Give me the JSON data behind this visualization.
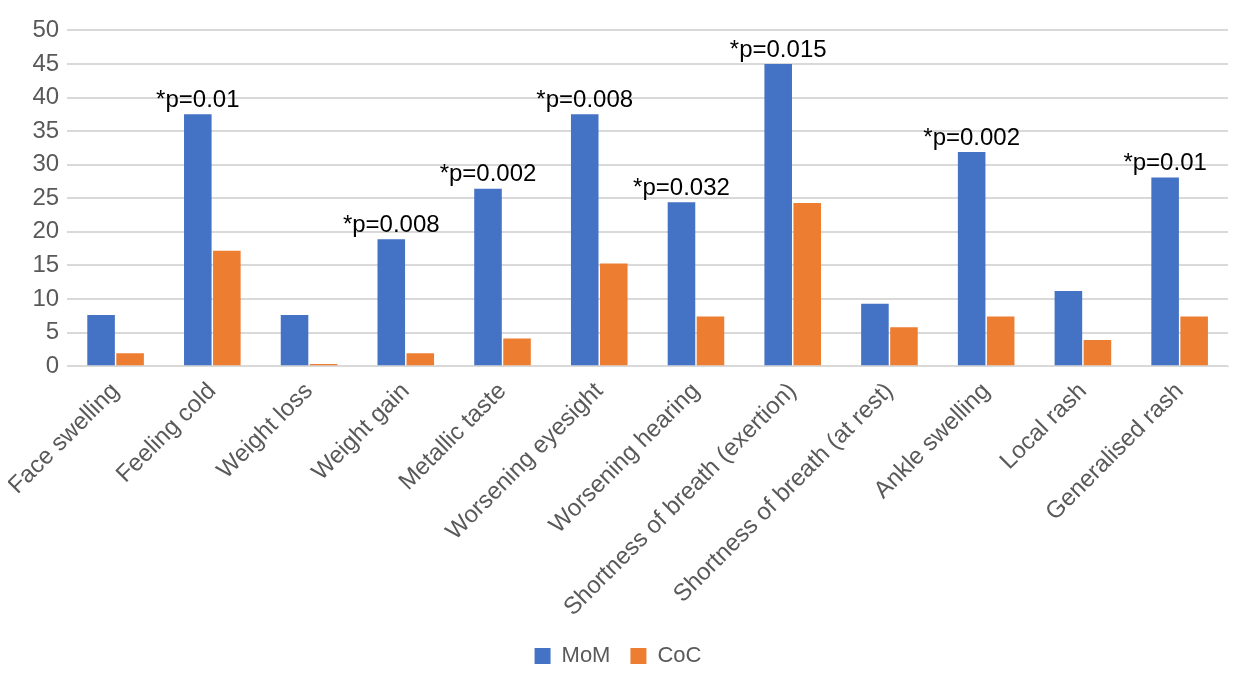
{
  "chart_data": {
    "type": "bar",
    "categories": [
      "Face swelling",
      "Feeling cold",
      "Weight loss",
      "Weight gain",
      "Metallic taste",
      "Worsening eyesight",
      "Worsening hearing",
      "Shortness of breath (exertion)",
      "Shortness of breath (at rest)",
      "Ankle swelling",
      "Local rash",
      "Generalised rash"
    ],
    "series": [
      {
        "name": "MoM",
        "color": "#4472c4",
        "values": [
          7.6,
          37.5,
          7.6,
          18.9,
          26.4,
          37.5,
          24.4,
          45,
          9.3,
          31.9,
          11.2,
          28.1
        ]
      },
      {
        "name": "CoC",
        "color": "#ed7d31",
        "values": [
          1.9,
          17.2,
          0.3,
          1.9,
          4.1,
          15.3,
          7.4,
          24.3,
          5.8,
          7.4,
          3.9,
          7.4
        ]
      }
    ],
    "ylim": [
      0,
      50
    ],
    "yticks": [
      0,
      5,
      10,
      15,
      20,
      25,
      30,
      35,
      40,
      45,
      50
    ],
    "grid": "y",
    "legend": "bottom",
    "annotations": [
      {
        "text": "*p=0.01",
        "x": "Feeling cold",
        "y": 37.5
      },
      {
        "text": "*p=0.008",
        "x": "Weight gain",
        "y": 18.9
      },
      {
        "text": "*p=0.002",
        "x": "Metallic taste",
        "y": 26.4
      },
      {
        "text": "*p=0.008",
        "x": "Worsening eyesight",
        "y": 37.5
      },
      {
        "text": "*p=0.032",
        "x": "Worsening hearing",
        "y": 24.4
      },
      {
        "text": "*p=0.015",
        "x": "Shortness of breath (exertion)",
        "y": 45
      },
      {
        "text": "*p=0.002",
        "x": "Ankle swelling",
        "y": 31.9
      },
      {
        "text": "*p=0.01",
        "x": "Generalised rash",
        "y": 28.1
      }
    ]
  }
}
